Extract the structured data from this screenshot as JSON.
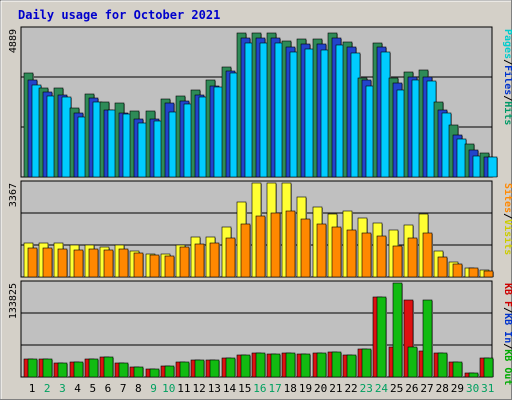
{
  "chart_data": [
    {
      "type": "bar",
      "title": "Daily usage for October 2021",
      "ymax_label": "4889",
      "categories": [
        "1",
        "2",
        "3",
        "4",
        "5",
        "6",
        "7",
        "8",
        "9",
        "10",
        "11",
        "12",
        "13",
        "14",
        "15",
        "16",
        "17",
        "18",
        "19",
        "20",
        "21",
        "22",
        "23",
        "24",
        "25",
        "26",
        "27",
        "28",
        "29",
        "30",
        "31"
      ],
      "weekend_days": [
        "2",
        "3",
        "9",
        "10",
        "16",
        "17",
        "23",
        "24",
        "30",
        "31"
      ],
      "legend": [
        {
          "label": "Hits",
          "color": "#009966"
        },
        {
          "label": "/",
          "color": "#000000"
        },
        {
          "label": "Files",
          "color": "#0033cc"
        },
        {
          "label": "/",
          "color": "#000000"
        },
        {
          "label": "Pages",
          "color": "#00cccc"
        }
      ],
      "ylim": [
        0,
        4889
      ],
      "series": [
        {
          "name": "Hits",
          "color": "#2e8b57",
          "values": [
            3450,
            2930,
            2950,
            2270,
            2750,
            2470,
            2430,
            2180,
            2180,
            2570,
            2670,
            2860,
            3220,
            3630,
            4760,
            4760,
            4760,
            4480,
            4570,
            4570,
            4760,
            4460,
            3280,
            4420,
            3270,
            3470,
            3520,
            2490,
            1730,
            1100,
            780
          ]
        },
        {
          "name": "Files",
          "color": "#2244cc",
          "values": [
            3200,
            2800,
            2700,
            2100,
            2600,
            2200,
            2100,
            1900,
            1900,
            2450,
            2500,
            2700,
            3000,
            3500,
            4600,
            4600,
            4600,
            4300,
            4400,
            4400,
            4600,
            4300,
            3200,
            4300,
            3100,
            3300,
            3300,
            2200,
            1400,
            900,
            650
          ]
        },
        {
          "name": "Pages",
          "color": "#00ccff",
          "values": [
            3050,
            2690,
            2640,
            1990,
            2480,
            2200,
            2080,
            1790,
            1850,
            2150,
            2400,
            2640,
            2980,
            3420,
            4430,
            4430,
            4430,
            4130,
            4240,
            4200,
            4350,
            4100,
            3000,
            4140,
            2890,
            3190,
            3180,
            2120,
            1250,
            710,
            650
          ]
        }
      ]
    },
    {
      "type": "bar",
      "ymax_label": "3367",
      "categories": [
        "1",
        "2",
        "3",
        "4",
        "5",
        "6",
        "7",
        "8",
        "9",
        "10",
        "11",
        "12",
        "13",
        "14",
        "15",
        "16",
        "17",
        "18",
        "19",
        "20",
        "21",
        "22",
        "23",
        "24",
        "25",
        "26",
        "27",
        "28",
        "29",
        "30",
        "31"
      ],
      "legend": [
        {
          "label": "Visits",
          "color": "#cccc00"
        },
        {
          "label": "/",
          "color": "#000000"
        },
        {
          "label": "Sites",
          "color": "#ff8800"
        }
      ],
      "ylim": [
        0,
        3367
      ],
      "series": [
        {
          "name": "Visits",
          "color": "#ffff33",
          "values": [
            1210,
            1210,
            1210,
            1130,
            1130,
            1090,
            1160,
            920,
            830,
            830,
            1140,
            1450,
            1450,
            1800,
            2680,
            3360,
            3360,
            3370,
            2870,
            2500,
            2270,
            2350,
            2100,
            1920,
            1670,
            1880,
            2270,
            920,
            540,
            340,
            240
          ]
        },
        {
          "name": "Sites",
          "color": "#ff8800",
          "values": [
            1050,
            1050,
            1010,
            980,
            1010,
            950,
            1010,
            850,
            800,
            770,
            1060,
            1190,
            1220,
            1380,
            1900,
            2180,
            2300,
            2370,
            2070,
            1910,
            1790,
            1700,
            1590,
            1480,
            1100,
            1380,
            1570,
            720,
            450,
            310,
            210
          ]
        }
      ]
    },
    {
      "type": "bar",
      "ymax_label": "133825",
      "categories": [
        "1",
        "2",
        "3",
        "4",
        "5",
        "6",
        "7",
        "8",
        "9",
        "10",
        "11",
        "12",
        "13",
        "14",
        "15",
        "16",
        "17",
        "18",
        "19",
        "20",
        "21",
        "22",
        "23",
        "24",
        "25",
        "26",
        "27",
        "28",
        "29",
        "30",
        "31"
      ],
      "legend": [
        {
          "label": "KB Out",
          "color": "#00aa00"
        },
        {
          "label": "/",
          "color": "#000000"
        },
        {
          "label": "KB In",
          "color": "#0033cc"
        },
        {
          "label": "/",
          "color": "#000000"
        },
        {
          "label": "KB F",
          "color": "#cc0000"
        }
      ],
      "ylim": [
        0,
        133825
      ],
      "series": [
        {
          "name": "KB F",
          "color": "#dd1111",
          "values": [
            26000,
            25000,
            19500,
            21500,
            25000,
            28000,
            19500,
            14500,
            11500,
            15500,
            21500,
            23500,
            23500,
            26500,
            31000,
            33500,
            33000,
            34000,
            32500,
            33500,
            35000,
            32000,
            39500,
            114000,
            42500,
            109000,
            37000,
            34000,
            21000,
            5200,
            27000
          ]
        },
        {
          "name": "KB Out",
          "color": "#11bb11",
          "values": [
            26000,
            25000,
            19500,
            21500,
            25000,
            28000,
            19500,
            14500,
            11500,
            15500,
            21500,
            23500,
            23500,
            26500,
            31000,
            33500,
            33000,
            34000,
            32500,
            33500,
            35000,
            32000,
            39500,
            114000,
            133800,
            42500,
            109000,
            34000,
            21000,
            5200,
            27000
          ]
        }
      ]
    }
  ],
  "x_axis": {
    "labels": [
      "1",
      "2",
      "3",
      "4",
      "5",
      "6",
      "7",
      "8",
      "9",
      "10",
      "11",
      "12",
      "13",
      "14",
      "15",
      "16",
      "17",
      "18",
      "19",
      "20",
      "21",
      "22",
      "23",
      "24",
      "25",
      "26",
      "27",
      "28",
      "29",
      "30",
      "31"
    ],
    "weekday_color": "#000000",
    "weekend_color": "#00a060"
  },
  "colors": {
    "page_bg": "#ffffff",
    "frame_bg": "#d4d0c8",
    "panel_bg": "#c0c0c0",
    "title": "#0000cc",
    "shadow": "#808080"
  }
}
